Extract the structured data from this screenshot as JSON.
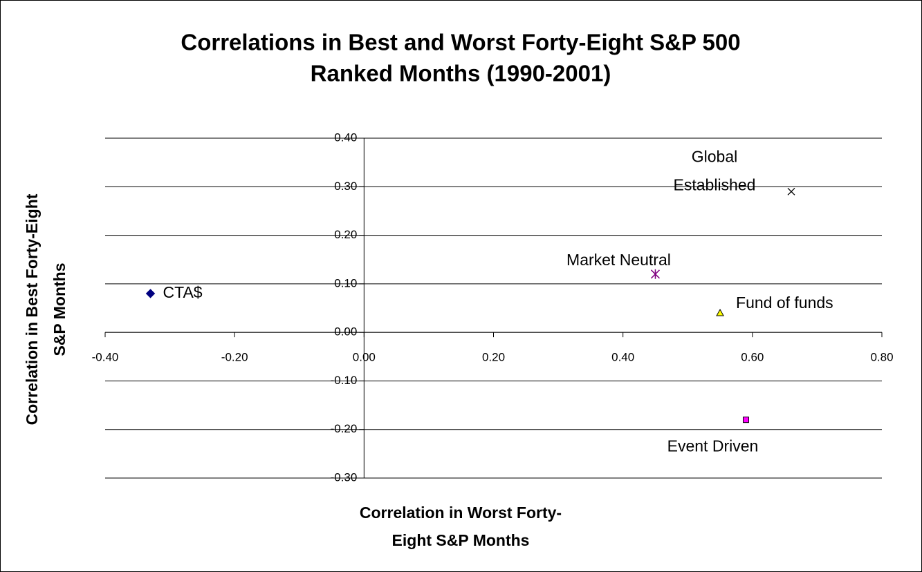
{
  "chart_data": {
    "type": "scatter",
    "title": [
      "Correlations in Best and Worst Forty-Eight S&P 500",
      "Ranked Months (1990-2001)"
    ],
    "xlabel": [
      "Correlation in Worst Forty-",
      "Eight S&P Months"
    ],
    "ylabel": [
      "Correlation in Best Forty-Eight",
      "S&P Months"
    ],
    "xlim": [
      -0.4,
      0.8
    ],
    "ylim": [
      -0.3,
      0.4
    ],
    "xticks": [
      {
        "value": -0.4,
        "label": "-0.40"
      },
      {
        "value": -0.2,
        "label": "-0.20"
      },
      {
        "value": 0,
        "label": "0.00"
      },
      {
        "value": 0.2,
        "label": "0.20"
      },
      {
        "value": 0.4,
        "label": "0.40"
      },
      {
        "value": 0.6,
        "label": "0.60"
      },
      {
        "value": 0.8,
        "label": "0.80"
      }
    ],
    "yticks": [
      {
        "value": -0.3,
        "label": "-0.30"
      },
      {
        "value": -0.2,
        "label": "-0.20"
      },
      {
        "value": -0.1,
        "label": "-0.10"
      },
      {
        "value": 0,
        "label": "0.00"
      },
      {
        "value": 0.1,
        "label": "0.10"
      },
      {
        "value": 0.2,
        "label": "0.20"
      },
      {
        "value": 0.3,
        "label": "0.30"
      },
      {
        "value": 0.4,
        "label": "0.40"
      }
    ],
    "grid": true,
    "series": [
      {
        "name": "CTA$",
        "color": "#000080",
        "marker": "diamond",
        "x": [
          -0.33
        ],
        "values": [
          0.08
        ]
      },
      {
        "name": "Global Established",
        "color": "#000000",
        "marker": "x",
        "x": [
          0.66
        ],
        "values": [
          0.29
        ]
      },
      {
        "name": "Market Neutral",
        "color": "#800080",
        "marker": "asterisk",
        "x": [
          0.45
        ],
        "values": [
          0.12
        ]
      },
      {
        "name": "Fund of funds",
        "color": "#ffff00",
        "marker": "triangle",
        "x": [
          0.55
        ],
        "values": [
          0.04
        ]
      },
      {
        "name": "Event Driven",
        "color": "#ff00ff",
        "marker": "square",
        "x": [
          0.59
        ],
        "values": [
          -0.18
        ]
      }
    ]
  }
}
